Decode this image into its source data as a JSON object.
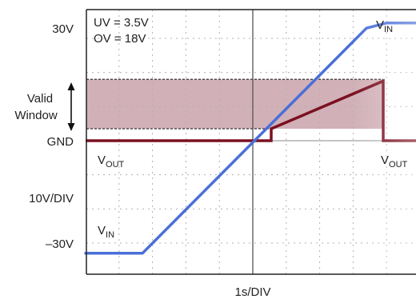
{
  "chart_data": {
    "type": "line",
    "x_unit_label": "1s/DIV",
    "y_unit_label": "10V/DIV",
    "y_ticks": [
      {
        "value": 30,
        "label": "30V"
      },
      {
        "value": 0,
        "label": "GND"
      },
      {
        "value": -30,
        "label": "–30V"
      }
    ],
    "xlim": [
      -5,
      5
    ],
    "ylim": [
      -40,
      40
    ],
    "grid": true,
    "annotations": {
      "uv": "UV = 3.5V",
      "ov": "OV = 18V",
      "valid_window_line1": "Valid",
      "valid_window_line2": "Window"
    },
    "valid_window": {
      "low": 3.5,
      "high": 18
    },
    "series": [
      {
        "name": "VIN",
        "label_main": "V",
        "label_sub": "IN",
        "color": "#4a6fd8",
        "x": [
          -5,
          -3.3,
          3.4,
          4.0,
          5
        ],
        "y": [
          -33,
          -33,
          33,
          34.5,
          34.5
        ]
      },
      {
        "name": "VOUT",
        "label_main": "V",
        "label_sub": "OUT",
        "color": "#7a1020",
        "x": [
          -5,
          0.55,
          0.55,
          3.9,
          3.9,
          5
        ],
        "y": [
          0,
          0,
          3.5,
          17.5,
          0,
          0
        ]
      }
    ],
    "colors": {
      "band": "#c9a2aa",
      "grid": "#b0b0b0",
      "axis": "#333333",
      "frame": "#222222"
    }
  }
}
